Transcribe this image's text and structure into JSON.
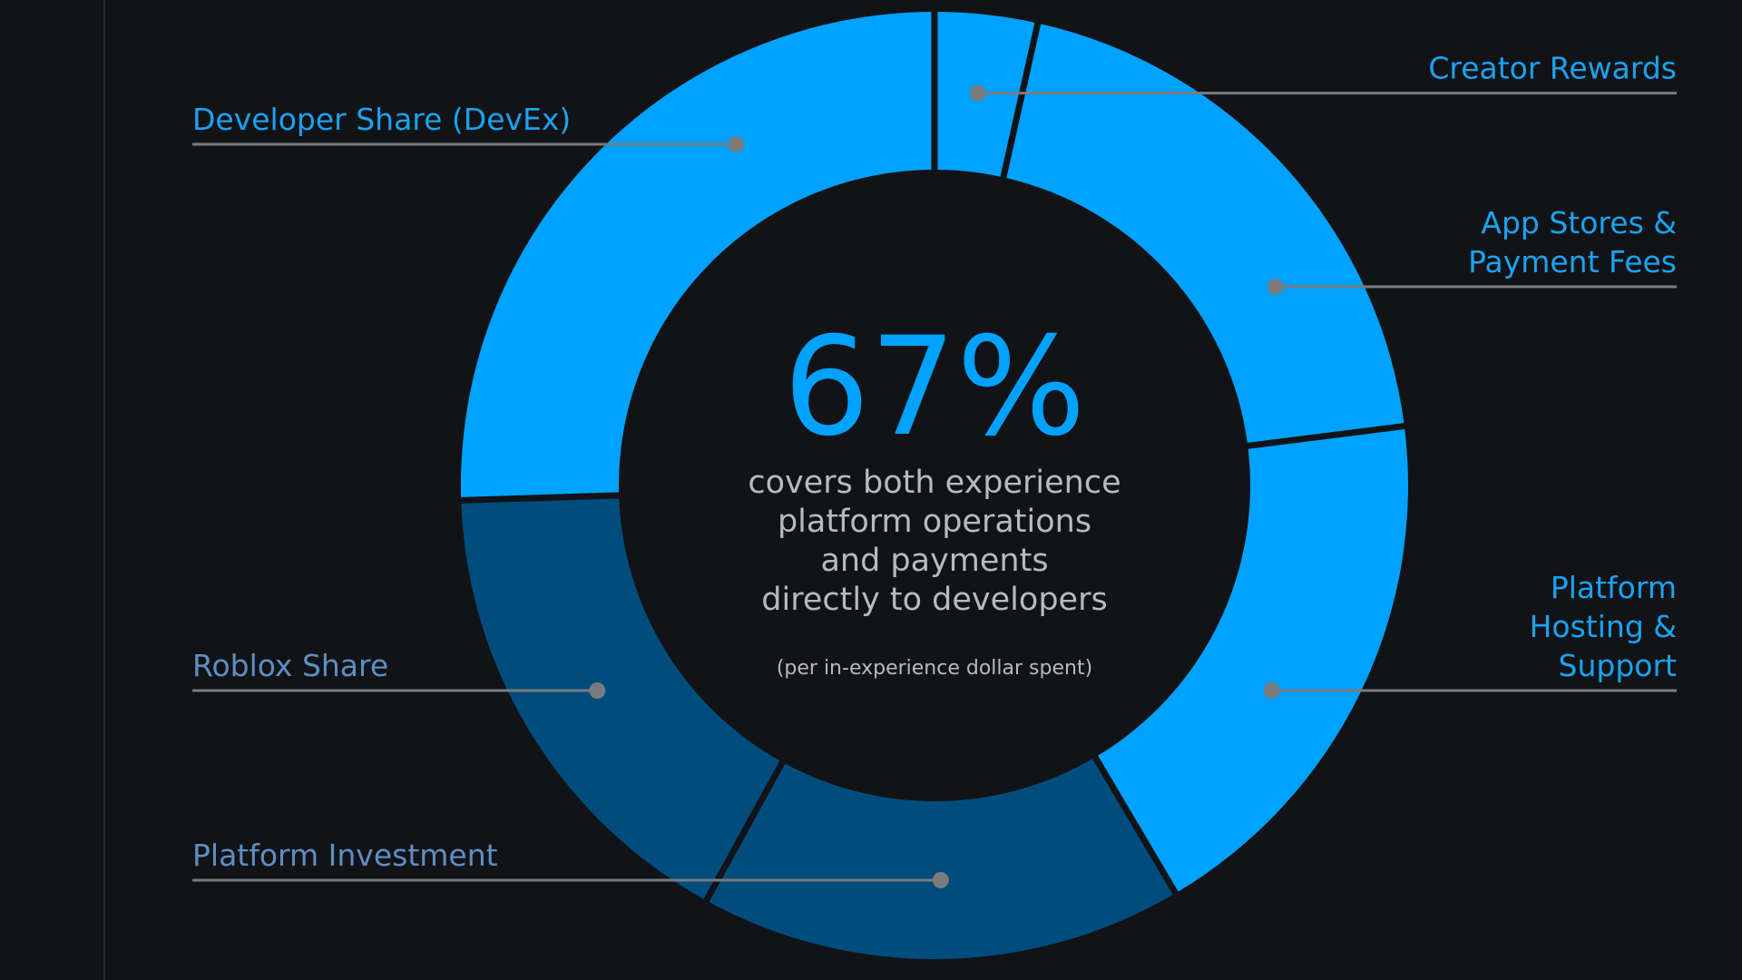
{
  "colors": {
    "background": "#121317",
    "developer": "#00a2ff",
    "roblox": "#004d7d",
    "leader": "#7a7b7e",
    "bright_label": "#1aa3f0",
    "dim_label": "#5e8ec2",
    "center_text": "#b9babd",
    "separator": "#121317"
  },
  "chart_data": {
    "type": "pie",
    "title": "",
    "center": {
      "value": "67%",
      "caption": [
        "covers both experience",
        "platform operations",
        "and payments",
        "directly to developers"
      ],
      "note": "(per in-experience dollar spent)"
    },
    "slices": [
      {
        "label": [
          "Creator Rewards"
        ],
        "value": 3.5,
        "group": "developer",
        "side": "right"
      },
      {
        "label": [
          "App Stores &",
          "Payment Fees"
        ],
        "value": 19.5,
        "group": "developer",
        "side": "right"
      },
      {
        "label": [
          "Platform",
          "Hosting &",
          "Support"
        ],
        "value": 18.5,
        "group": "developer",
        "side": "right"
      },
      {
        "label": [
          "Platform Investment"
        ],
        "value": 16.5,
        "group": "roblox",
        "side": "left"
      },
      {
        "label": [
          "Roblox Share"
        ],
        "value": 16.5,
        "group": "roblox",
        "side": "left"
      },
      {
        "label": [
          "Developer Share (DevEx)"
        ],
        "value": 25.5,
        "group": "developer",
        "side": "left"
      }
    ]
  }
}
